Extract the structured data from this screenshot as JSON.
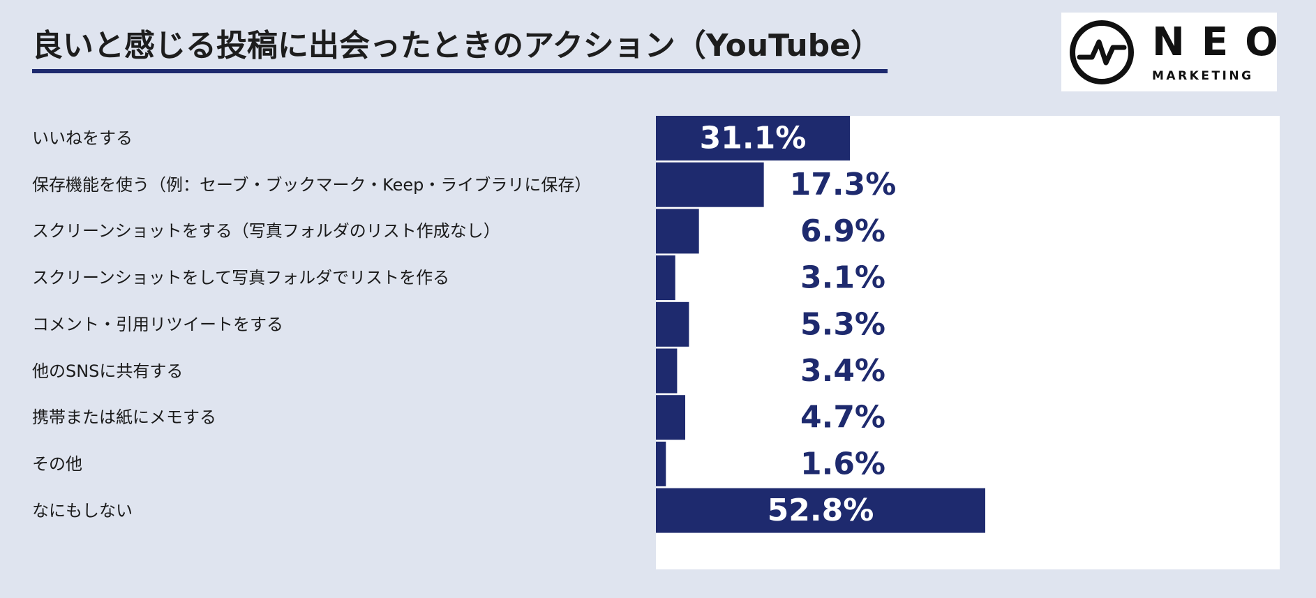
{
  "title": "良いと感じる投稿に出会ったときのアクション（YouTube）",
  "logo": {
    "word": "NEO",
    "sub": "MARKETING"
  },
  "colors": {
    "background": "#dfe4ef",
    "bar": "#1e2a6e",
    "accent_rule": "#1e2a6e",
    "plot_background": "#ffffff"
  },
  "chart_data": {
    "type": "bar",
    "orientation": "horizontal",
    "title": "良いと感じる投稿に出会ったときのアクション（YouTube）",
    "xlabel": "",
    "ylabel": "",
    "xlim": [
      0,
      100
    ],
    "unit": "%",
    "grid": false,
    "legend": "none",
    "categories": [
      "いいねをする",
      "保存機能を使う（例：セーブ・ブックマーク・Keep・ライブラリに保存）",
      "スクリーンショットをする（写真フォルダのリスト作成なし）",
      "スクリーンショットをして写真フォルダでリストを作る",
      "コメント・引用リツイートをする",
      "他のSNSに共有する",
      "携帯または紙にメモする",
      "その他",
      "なにもしない"
    ],
    "values": [
      31.1,
      17.3,
      6.9,
      3.1,
      5.3,
      3.4,
      4.7,
      1.6,
      52.8
    ],
    "value_labels": [
      "31.1%",
      "17.3%",
      "6.9%",
      "3.1%",
      "5.3%",
      "3.4%",
      "4.7%",
      "1.6%",
      "52.8%"
    ]
  }
}
